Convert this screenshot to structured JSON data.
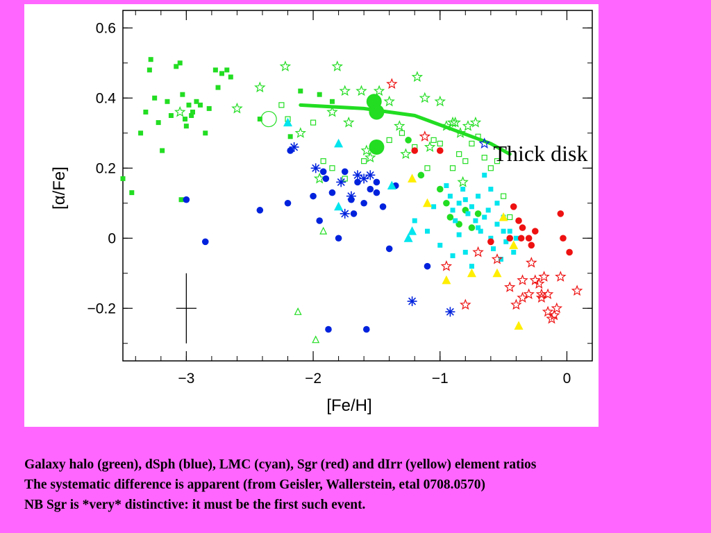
{
  "chart_data": {
    "type": "scatter",
    "title": "",
    "xlabel": "[Fe/H]",
    "ylabel": "[α/Fe]",
    "xlim": [
      -3.5,
      0.2
    ],
    "ylim": [
      -0.35,
      0.65
    ],
    "xticks": [
      -3,
      -2,
      -1,
      0
    ],
    "xtick_labels": [
      "−3",
      "−2",
      "−1",
      "0"
    ],
    "yticks": [
      0.6,
      0.4,
      0.2,
      0,
      -0.2
    ],
    "ytick_labels": [
      "0.6",
      "0.4",
      "0.2",
      "0",
      "−0.2"
    ],
    "grid": false,
    "legend": "none",
    "colors": {
      "halo": "#22dd22",
      "dsph": "#0022dd",
      "lmc": "#00e5ee",
      "sgr": "#ee1111",
      "dirr": "#ffee00"
    },
    "annotations": [
      {
        "text": "Thick disk",
        "x": -0.58,
        "y": 0.22
      }
    ],
    "thick_disk_trend": {
      "color": "#22dd22",
      "x": [
        -2.1,
        -1.6,
        -1.2,
        -0.9,
        -0.6,
        -0.45
      ],
      "y": [
        0.38,
        0.37,
        0.35,
        0.31,
        0.27,
        0.24
      ]
    },
    "error_bar": {
      "x": -3.0,
      "y": -0.2,
      "dx": 0.08,
      "dy": 0.1
    },
    "series": [
      {
        "name": "",
        "group": "halo",
        "marker": "square-filled",
        "color": "#22dd22",
        "x": [
          -3.5,
          -3.43,
          -3.36,
          -3.32,
          -3.29,
          -3.28,
          -3.25,
          -3.22,
          -3.19,
          -3.15,
          -3.12,
          -3.08,
          -3.05,
          -3.04,
          -3.03,
          -3.01,
          -3.0,
          -2.98,
          -2.96,
          -2.95,
          -2.92,
          -2.89,
          -2.85,
          -2.82,
          -2.77,
          -2.75,
          -2.72,
          -2.68,
          -2.65,
          -2.42,
          -2.18,
          -2.1,
          -1.95,
          -1.85
        ],
        "y": [
          0.17,
          0.13,
          0.3,
          0.36,
          0.48,
          0.51,
          0.4,
          0.33,
          0.25,
          0.39,
          0.35,
          0.49,
          0.5,
          0.11,
          0.41,
          0.34,
          0.32,
          0.38,
          0.35,
          0.36,
          0.39,
          0.38,
          0.3,
          0.37,
          0.48,
          0.43,
          0.47,
          0.48,
          0.46,
          0.34,
          0.29,
          0.42,
          0.41,
          0.39
        ]
      },
      {
        "name": "",
        "group": "halo",
        "marker": "square-open",
        "color": "#22dd22",
        "x": [
          -2.25,
          -2.2,
          -2.0,
          -1.92,
          -1.85,
          -1.75,
          -1.6,
          -1.4,
          -1.2,
          -1.0,
          -0.9,
          -0.85,
          -0.8,
          -0.75,
          -0.7,
          -0.65,
          -0.6,
          -0.55,
          -0.5,
          -0.45,
          -1.3,
          -1.1,
          -1.05
        ],
        "y": [
          0.38,
          0.34,
          0.33,
          0.22,
          0.2,
          0.17,
          0.22,
          0.28,
          0.26,
          0.27,
          0.2,
          0.24,
          0.22,
          0.27,
          0.29,
          0.23,
          0.2,
          0.22,
          0.12,
          0.06,
          0.3,
          0.2,
          0.28
        ]
      },
      {
        "name": "",
        "group": "halo",
        "marker": "star-open",
        "color": "#22dd22",
        "x": [
          -3.05,
          -2.6,
          -2.42,
          -2.22,
          -1.81,
          -1.75,
          -1.72,
          -1.62,
          -1.58,
          -1.48,
          -1.4,
          -1.32,
          -1.18,
          -1.12,
          -1.08,
          -1.0,
          -0.95,
          -0.88,
          -0.84,
          -0.78,
          -0.72,
          -1.95,
          -1.85,
          -1.55,
          -1.27,
          -0.9,
          -0.82,
          -2.1
        ],
        "y": [
          0.36,
          0.37,
          0.43,
          0.49,
          0.49,
          0.42,
          0.33,
          0.42,
          0.25,
          0.42,
          0.39,
          0.32,
          0.46,
          0.4,
          0.26,
          0.39,
          0.32,
          0.33,
          0.3,
          0.32,
          0.33,
          0.17,
          0.36,
          0.23,
          0.24,
          0.33,
          0.16,
          0.3
        ]
      },
      {
        "name": "",
        "group": "halo",
        "marker": "circle-filled",
        "color": "#22dd22",
        "x": [
          -1.25,
          -1.15,
          -1.0,
          -0.95,
          -0.92,
          -0.85,
          -0.8,
          -0.75,
          -0.7
        ],
        "y": [
          0.28,
          0.18,
          0.14,
          0.1,
          0.06,
          0.04,
          0.08,
          0.03,
          0.07
        ]
      },
      {
        "name": "",
        "group": "halo",
        "marker": "circle-big-filled",
        "color": "#22dd22",
        "x": [
          -1.52,
          -1.5,
          -1.5
        ],
        "y": [
          0.39,
          0.36,
          0.26
        ]
      },
      {
        "name": "",
        "group": "halo",
        "marker": "circle-big-open",
        "color": "#22dd22",
        "x": [
          -2.35
        ],
        "y": [
          0.34
        ]
      },
      {
        "name": "",
        "group": "halo",
        "marker": "triangle-open",
        "color": "#22dd22",
        "x": [
          -2.12,
          -1.98,
          -1.92
        ],
        "y": [
          -0.21,
          -0.29,
          0.02
        ]
      },
      {
        "name": "",
        "group": "dsph",
        "marker": "circle-filled",
        "color": "#0022dd",
        "x": [
          -3.0,
          -2.85,
          -2.42,
          -2.2,
          -2.18,
          -2.0,
          -1.95,
          -1.92,
          -1.9,
          -1.85,
          -1.8,
          -1.75,
          -1.7,
          -1.65,
          -1.6,
          -1.58,
          -1.55,
          -1.5,
          -1.45,
          -1.4,
          -1.35,
          -1.1,
          -1.88,
          -1.68,
          -1.5
        ],
        "y": [
          0.11,
          -0.01,
          0.08,
          0.1,
          0.25,
          0.12,
          0.05,
          0.19,
          0.17,
          0.13,
          0.0,
          0.19,
          0.11,
          0.16,
          0.1,
          -0.26,
          0.14,
          0.13,
          0.09,
          -0.03,
          0.15,
          -0.08,
          -0.26,
          0.07,
          0.16
        ]
      },
      {
        "name": "",
        "group": "dsph",
        "marker": "asterisk",
        "color": "#0022dd",
        "x": [
          -2.15,
          -1.98,
          -1.78,
          -1.75,
          -1.7,
          -1.65,
          -1.6,
          -1.55,
          -1.22,
          -0.92
        ],
        "y": [
          0.26,
          0.2,
          0.16,
          0.07,
          0.12,
          0.18,
          0.17,
          0.18,
          -0.18,
          -0.21
        ]
      },
      {
        "name": "",
        "group": "dsph",
        "marker": "star-open",
        "color": "#0022dd",
        "x": [
          -0.65
        ],
        "y": [
          0.27
        ]
      },
      {
        "name": "",
        "group": "lmc",
        "marker": "square-filled",
        "color": "#00e5ee",
        "x": [
          -0.95,
          -0.92,
          -0.9,
          -0.88,
          -0.85,
          -0.82,
          -0.8,
          -0.78,
          -0.75,
          -0.72,
          -0.7,
          -0.68,
          -0.65,
          -0.62,
          -0.6,
          -0.58,
          -0.55,
          -0.52,
          -0.5,
          -0.48,
          -0.45,
          -0.42,
          -1.2,
          -1.1,
          -1.05,
          -1.0,
          -0.9,
          -0.85,
          -0.8,
          -0.75,
          -0.7,
          -0.65,
          -0.6,
          -0.55,
          -0.5,
          -0.45,
          -0.4
        ],
        "y": [
          0.15,
          0.12,
          0.08,
          0.05,
          0.1,
          0.14,
          0.11,
          0.07,
          0.09,
          0.05,
          0.12,
          0.02,
          0.06,
          0.08,
          0.0,
          -0.03,
          0.04,
          -0.06,
          0.02,
          -0.01,
          0.0,
          -0.04,
          0.05,
          0.02,
          0.09,
          -0.02,
          -0.05,
          0.01,
          -0.04,
          -0.08,
          0.03,
          0.18,
          0.14,
          0.1,
          0.06,
          0.02,
          0.0
        ]
      },
      {
        "name": "",
        "group": "lmc",
        "marker": "triangle-filled",
        "color": "#00e5ee",
        "x": [
          -2.2,
          -1.8,
          -1.8,
          -1.38,
          -1.25,
          -1.22
        ],
        "y": [
          0.33,
          0.27,
          0.09,
          0.15,
          0.0,
          0.02
        ]
      },
      {
        "name": "",
        "group": "sgr",
        "marker": "circle-filled",
        "color": "#ee1111",
        "x": [
          -0.42,
          -0.38,
          -0.36,
          -0.35,
          -0.3,
          -0.28,
          -0.25,
          -0.05,
          -0.03,
          0.02,
          -0.6,
          -1.0,
          -1.2,
          -0.45
        ],
        "y": [
          0.09,
          0.05,
          0.0,
          0.03,
          0.0,
          -0.02,
          0.02,
          0.07,
          0.0,
          -0.04,
          -0.01,
          0.25,
          0.25,
          0.0
        ]
      },
      {
        "name": "",
        "group": "sgr",
        "marker": "star-open",
        "color": "#ee1111",
        "x": [
          -1.38,
          -1.12,
          -0.95,
          -0.8,
          -0.7,
          -0.55,
          -0.45,
          -0.4,
          -0.35,
          -0.3,
          -0.25,
          -0.22,
          -0.2,
          -0.18,
          -0.15,
          -0.12,
          -0.1,
          -0.05,
          0.08,
          -0.35,
          -0.28,
          -0.2,
          -0.15,
          -0.08
        ],
        "y": [
          0.44,
          0.29,
          -0.08,
          -0.19,
          -0.04,
          -0.06,
          -0.14,
          -0.19,
          -0.17,
          -0.16,
          -0.12,
          -0.13,
          -0.16,
          -0.11,
          -0.16,
          -0.23,
          -0.22,
          -0.11,
          -0.15,
          -0.12,
          -0.07,
          -0.17,
          -0.21,
          -0.2
        ]
      },
      {
        "name": "",
        "group": "dirr",
        "marker": "triangle-filled",
        "color": "#ffee00",
        "x": [
          -1.22,
          -1.1,
          -0.95,
          -0.75,
          -0.55,
          -0.5,
          -0.42,
          -0.38
        ],
        "y": [
          0.17,
          0.1,
          -0.12,
          -0.1,
          -0.1,
          0.06,
          -0.02,
          -0.25
        ]
      }
    ]
  },
  "caption": {
    "line1": "Galaxy halo (green), dSph (blue), LMC (cyan), Sgr (red) and dIrr (yellow) element ratios",
    "line2": "The systematic difference is apparent (from Geisler, Wallerstein,  etal 0708.0570)",
    "line3": "NB Sgr is *very* distinctive: it must be the first such event."
  }
}
